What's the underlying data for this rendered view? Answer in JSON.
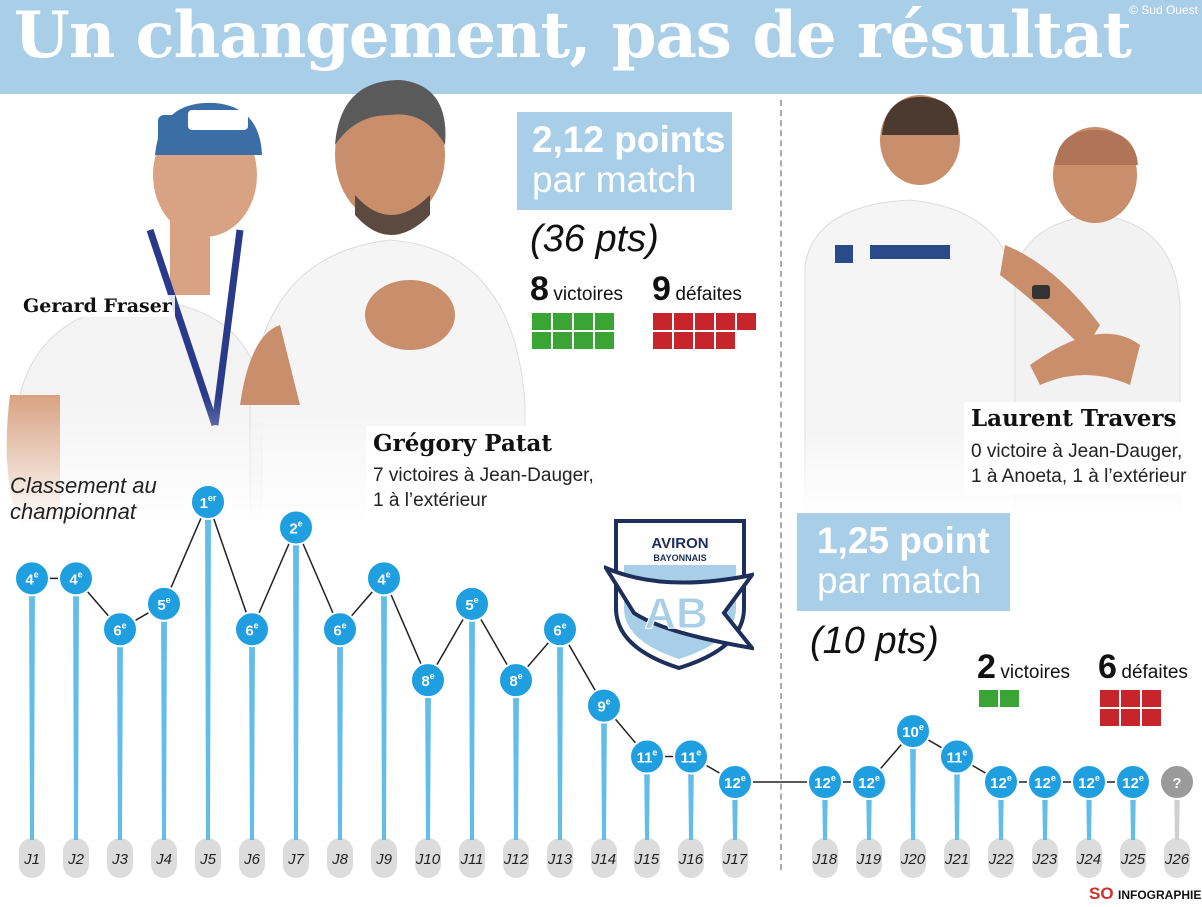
{
  "title": "Un changement, pas de résultat",
  "copyright": "© Sud Ouest",
  "coaches_left": [
    {
      "name": "Gerard Fraser"
    },
    {
      "name": "Grégory Patat",
      "desc": [
        "7 victoires à Jean-Dauger,",
        "1 à l’extérieur"
      ]
    }
  ],
  "coach_right": {
    "name": "Laurent Travers",
    "desc": [
      "0 victoire à Jean-Dauger,",
      "1 à Anoeta, 1 à l’extérieur"
    ]
  },
  "stats_left": {
    "value": "2,12 points",
    "unit": "par match",
    "pts": "(36 pts)",
    "wins": 8,
    "wins_label": "victoires",
    "losses": 9,
    "losses_label": "défaites"
  },
  "stats_right": {
    "value": "1,25 point",
    "unit": "par match",
    "pts": "(10 pts)",
    "wins": 2,
    "wins_label": "victoires",
    "losses": 6,
    "losses_label": "défaites"
  },
  "colors": {
    "accent": "#a9cfe8",
    "marker": "#1f9fe0",
    "bar": "#62bde8",
    "win": "#3aa535",
    "loss": "#c8242b",
    "unknown": "#9a9a9a"
  },
  "logo": {
    "line1": "AVIRON",
    "line2": "BAYONNAIS",
    "mono": "AB"
  },
  "footer": {
    "so": "SO",
    "label": "INFOGRAPHIE"
  },
  "chart_data": {
    "type": "line",
    "title": "",
    "ylabel": "Classement au championnat",
    "x": [
      "J1",
      "J2",
      "J3",
      "J4",
      "J5",
      "J6",
      "J7",
      "J8",
      "J9",
      "J10",
      "J11",
      "J12",
      "J13",
      "J14",
      "J15",
      "J16",
      "J17",
      "J18",
      "J19",
      "J20",
      "J21",
      "J22",
      "J23",
      "J24",
      "J25",
      "J26"
    ],
    "values": [
      4,
      4,
      6,
      5,
      1,
      6,
      2,
      6,
      4,
      8,
      5,
      8,
      6,
      9,
      11,
      11,
      12,
      12,
      12,
      10,
      11,
      12,
      12,
      12,
      12,
      null
    ],
    "labels": [
      "4e",
      "4e",
      "6e",
      "5e",
      "1er",
      "6e",
      "2e",
      "6e",
      "4e",
      "8e",
      "5e",
      "8e",
      "6e",
      "9e",
      "11e",
      "11e",
      "12e",
      "12e",
      "12e",
      "10e",
      "11e",
      "12e",
      "12e",
      "12e",
      "12e",
      "?"
    ],
    "yrange": [
      1,
      12
    ],
    "inverted": true
  }
}
